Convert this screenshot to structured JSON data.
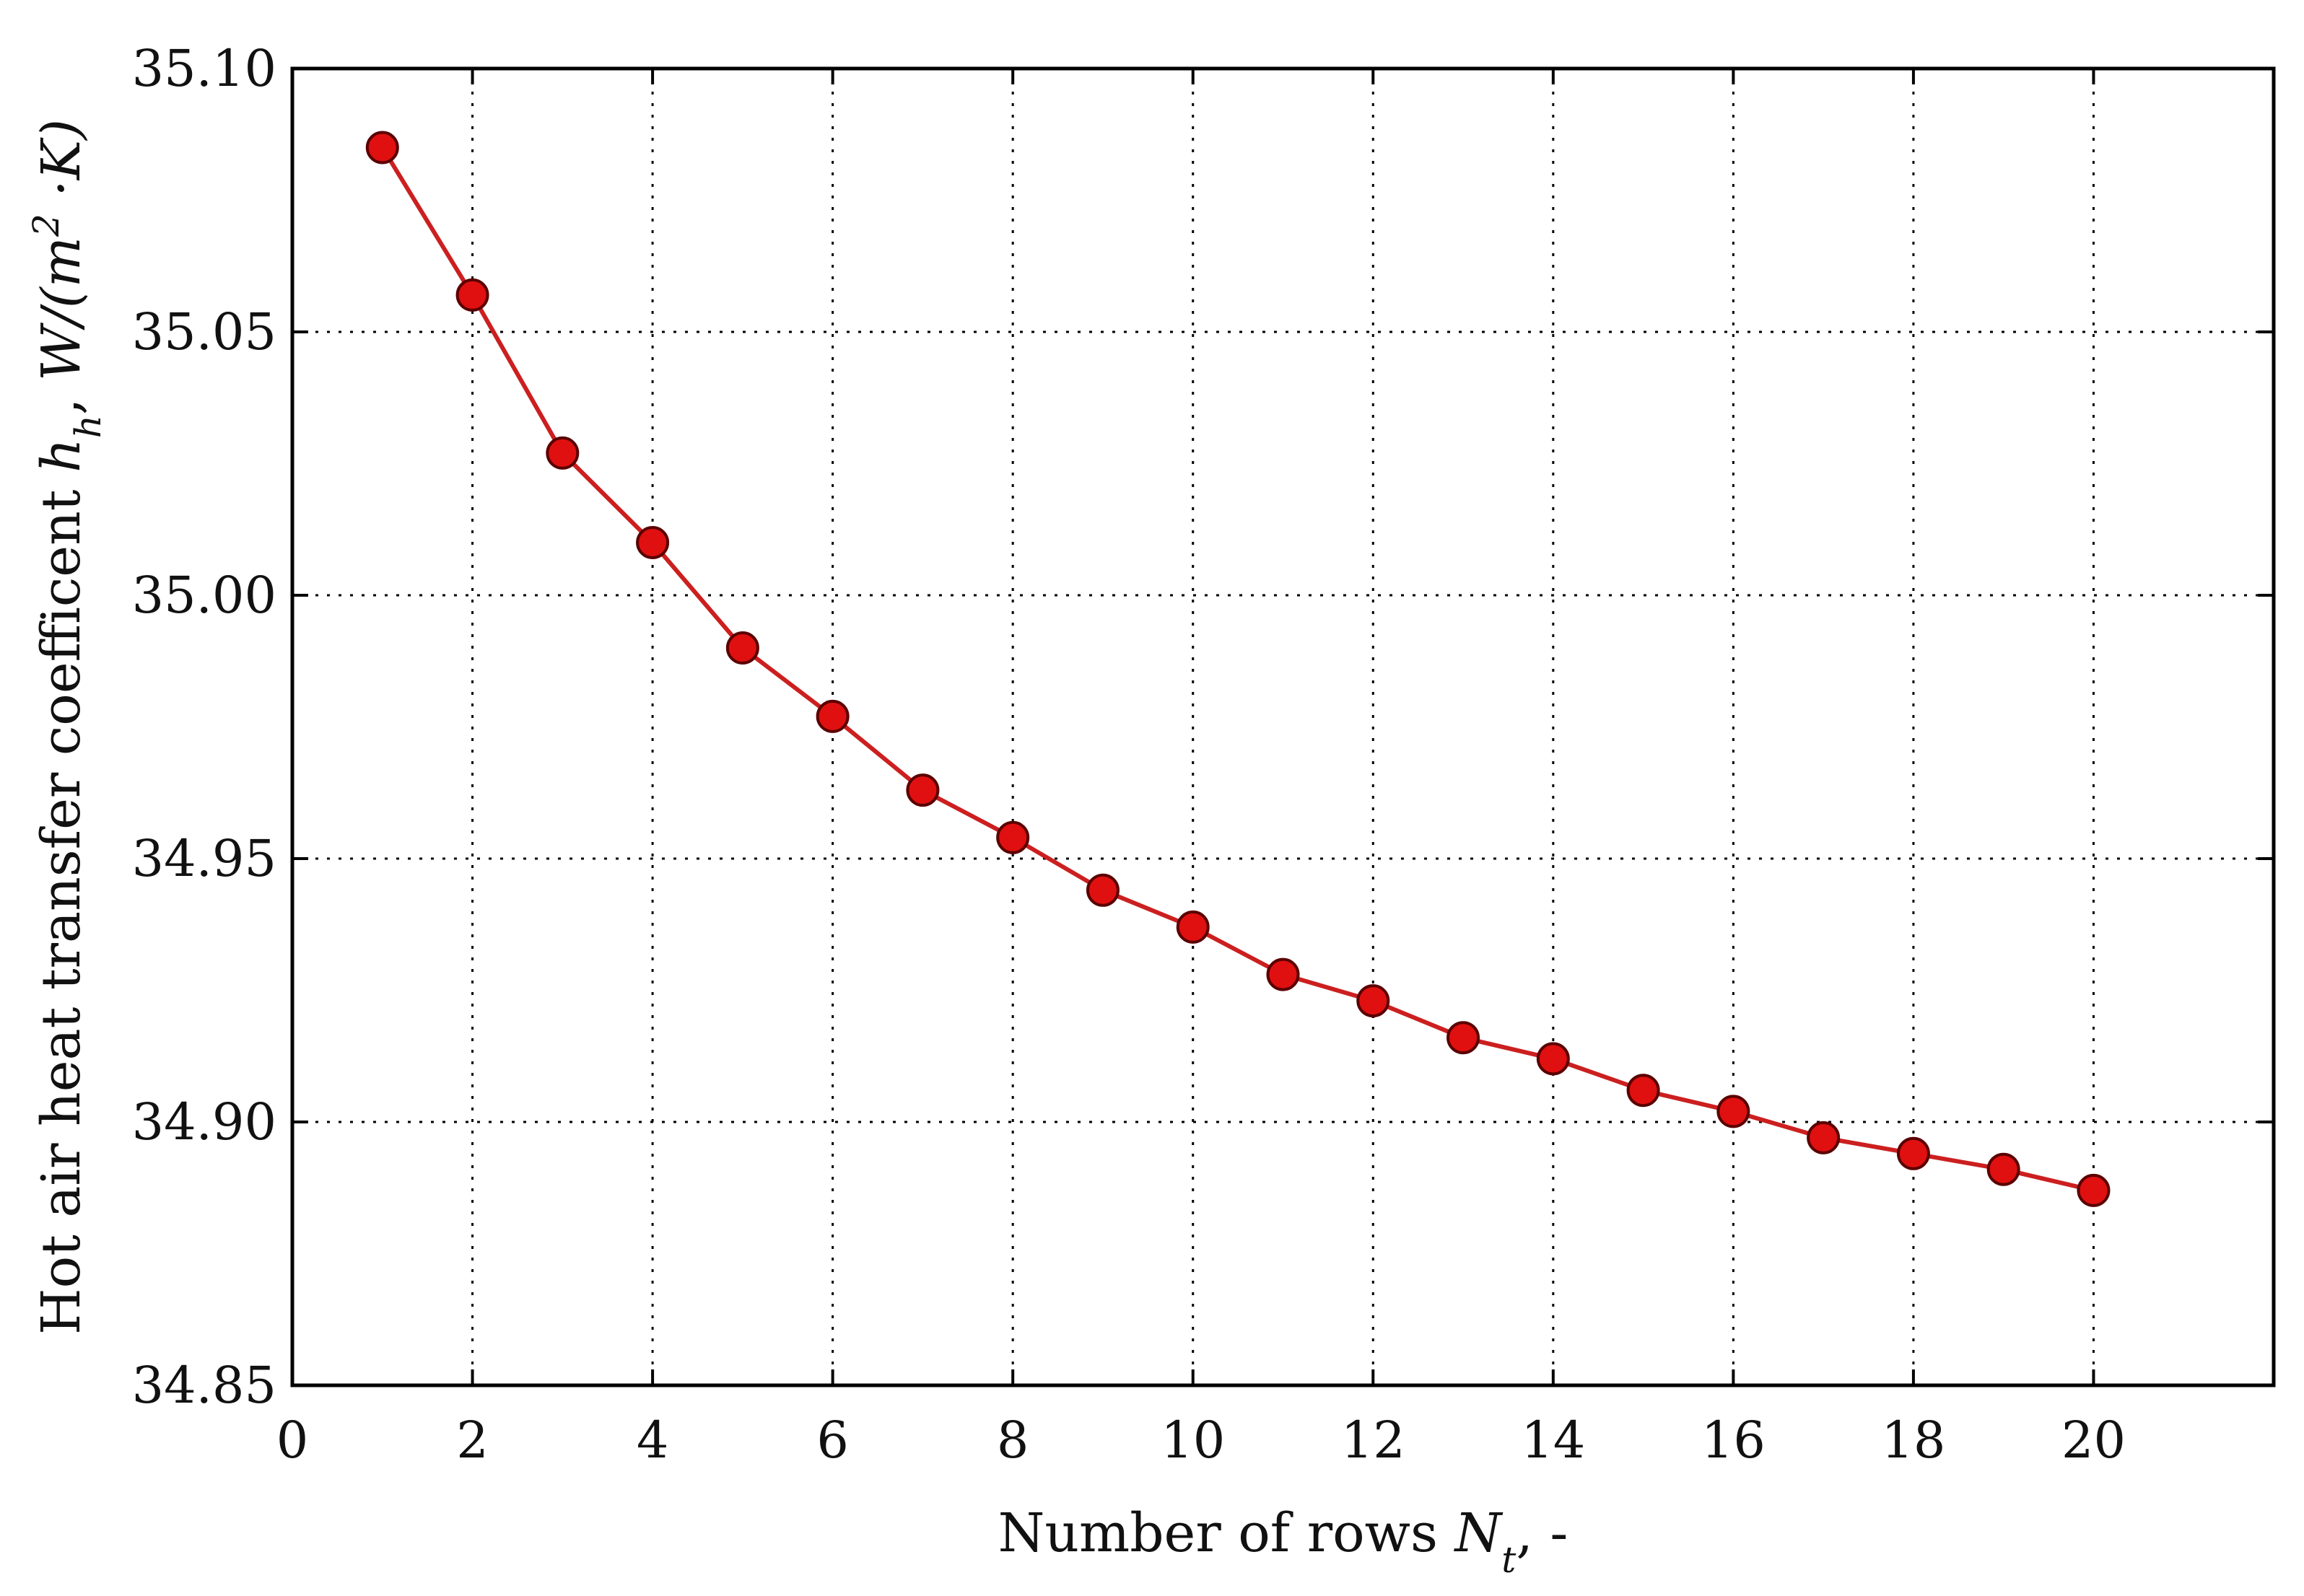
{
  "chart_data": {
    "type": "line",
    "title": "",
    "xlabel": {
      "prefix": "Number of rows ",
      "symbol": "N",
      "sub": "t",
      "suffix": ", -"
    },
    "ylabel": {
      "prefix": "Hot air heat transfer coefficent ",
      "symbol": "h",
      "sub": "h",
      "mid": ", ",
      "unit_pre": "W/(m",
      "unit_sup": "2",
      "unit_post": " ·K)"
    },
    "xlim": [
      0,
      22
    ],
    "ylim": [
      34.85,
      35.1
    ],
    "xticks": [
      "0",
      "2",
      "4",
      "6",
      "8",
      "10",
      "12",
      "14",
      "16",
      "18",
      "20"
    ],
    "yticks": [
      "34.85",
      "34.90",
      "34.95",
      "35.00",
      "35.05",
      "35.10"
    ],
    "grid": true,
    "grid_style": "dotted",
    "legend": false,
    "series": [
      {
        "color": "#cc1f1f",
        "marker_fill": "#e01010",
        "marker_edge": "#5a0000",
        "x": [
          1,
          2,
          3,
          4,
          5,
          6,
          7,
          8,
          9,
          10,
          11,
          12,
          13,
          14,
          15,
          16,
          17,
          18,
          19,
          20
        ],
        "y": [
          35.085,
          35.057,
          35.027,
          35.01,
          34.99,
          34.977,
          34.963,
          34.954,
          34.944,
          34.937,
          34.928,
          34.923,
          34.916,
          34.912,
          34.906,
          34.902,
          34.897,
          34.894,
          34.891,
          34.887
        ]
      }
    ]
  }
}
